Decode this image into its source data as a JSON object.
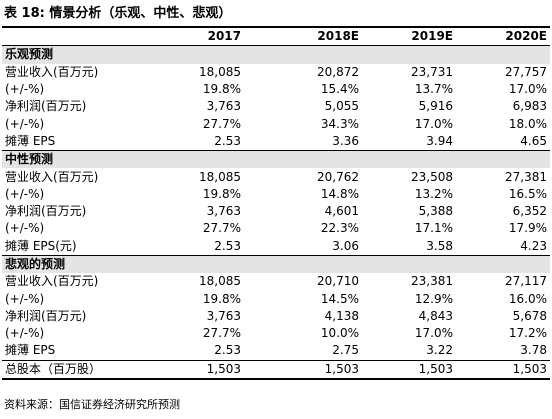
{
  "title": "表 18:  情景分析（乐观、中性、悲观）",
  "table": {
    "header": [
      "",
      "2017",
      "2018E",
      "2019E",
      "2020E"
    ],
    "sections": [
      {
        "label": "乐观预测",
        "rows": [
          [
            "营业收入(百万元)",
            "18,085",
            "20,872",
            "23,731",
            "27,757"
          ],
          [
            "(+/-%)",
            "19.8%",
            "15.4%",
            "13.7%",
            "17.0%"
          ],
          [
            "净利润(百万元)",
            "3,763",
            "5,055",
            "5,916",
            "6,983"
          ],
          [
            "(+/-%)",
            "27.7%",
            "34.3%",
            "17.0%",
            "18.0%"
          ],
          [
            "摊薄 EPS",
            "2.53",
            "3.36",
            "3.94",
            "4.65"
          ]
        ]
      },
      {
        "label": "中性预测",
        "rows": [
          [
            "营业收入(百万元)",
            "18,085",
            "20,762",
            "23,508",
            "27,381"
          ],
          [
            "(+/-%)",
            "19.8%",
            "14.8%",
            "13.2%",
            "16.5%"
          ],
          [
            "净利润(百万元)",
            "3,763",
            "4,601",
            "5,388",
            "6,352"
          ],
          [
            "(+/-%)",
            "27.7%",
            "22.3%",
            "17.1%",
            "17.9%"
          ],
          [
            "摊薄 EPS(元)",
            "2.53",
            "3.06",
            "3.58",
            "4.23"
          ]
        ]
      },
      {
        "label": "悲观的预测",
        "rows": [
          [
            "营业收入(百万元)",
            "18,085",
            "20,710",
            "23,381",
            "27,117"
          ],
          [
            "(+/-%)",
            "19.8%",
            "14.5%",
            "12.9%",
            "16.0%"
          ],
          [
            "净利润(百万元)",
            "3,763",
            "4,138",
            "4,843",
            "5,678"
          ],
          [
            "(+/-%)",
            "27.7%",
            "10.0%",
            "17.0%",
            "17.2%"
          ],
          [
            "摊薄 EPS",
            "2.53",
            "2.75",
            "3.22",
            "3.78"
          ]
        ]
      }
    ],
    "footer_row": [
      "总股本（百万股）",
      "1,503",
      "1,503",
      "1,503",
      "1,503"
    ]
  },
  "source": "资料来源：国信证券经济研究所预测"
}
